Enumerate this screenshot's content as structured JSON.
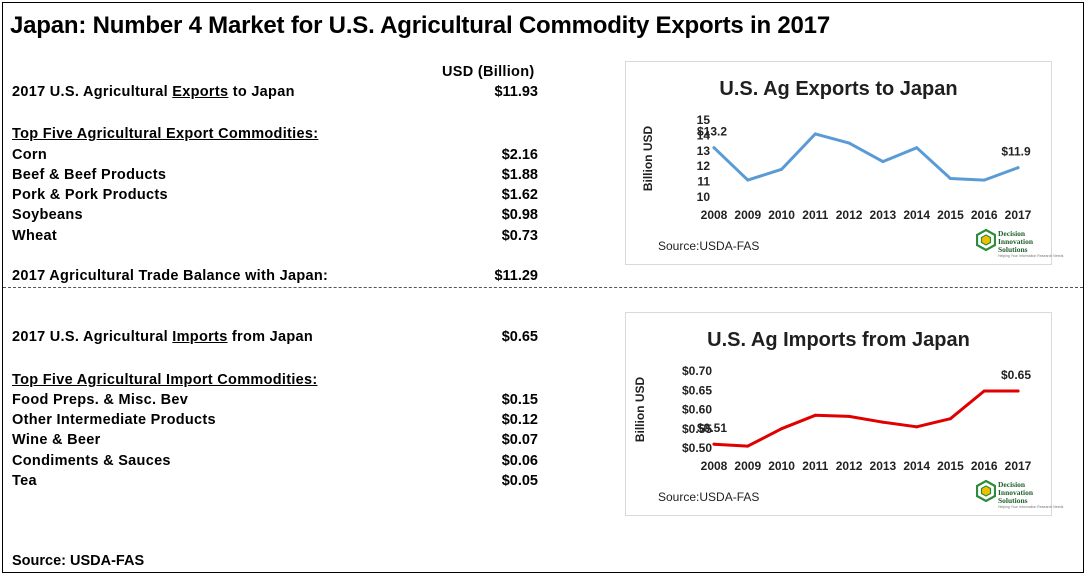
{
  "title": "Japan: Number 4 Market for U.S. Agricultural Commodity Exports in 2017",
  "unit_header": "USD (Billion)",
  "exports": {
    "label_pre": "2017 U.S. Agricultural ",
    "label_key": "Exports",
    "label_post": " to Japan",
    "value": "$11.93",
    "top_heading": "Top Five Agricultural Export Commodities:",
    "items": [
      {
        "name": "Corn",
        "value": "$2.16"
      },
      {
        "name": "Beef & Beef Products",
        "value": "$1.88"
      },
      {
        "name": "Pork & Pork Products",
        "value": "$1.62"
      },
      {
        "name": "Soybeans",
        "value": "$0.98"
      },
      {
        "name": "Wheat",
        "value": "$0.73"
      }
    ],
    "balance_label": "2017 Agricultural Trade Balance with Japan:",
    "balance_value": "$11.29"
  },
  "imports": {
    "label_pre": "2017 U.S. Agricultural ",
    "label_key": "Imports",
    "label_post": " from Japan",
    "value": "$0.65",
    "top_heading": "Top Five Agricultural Import Commodities:",
    "items": [
      {
        "name": "Food Preps. & Misc. Bev",
        "value": "$0.15"
      },
      {
        "name": "Other Intermediate Products",
        "value": "$0.12"
      },
      {
        "name": "Wine & Beer",
        "value": "$0.07"
      },
      {
        "name": "Condiments & Sauces",
        "value": "$0.06"
      },
      {
        "name": "Tea",
        "value": "$0.05"
      }
    ]
  },
  "source": "Source: USDA-FAS",
  "logo": {
    "line1": "Decision",
    "line2": "Innovation",
    "line3": "Solutions",
    "tagline": "Helping Your Information Research Needs"
  },
  "chart_data": [
    {
      "type": "line",
      "title": "U.S. Ag Exports to Japan",
      "ylabel": "Billion USD",
      "xlabel": "",
      "x": [
        "2008",
        "2009",
        "2010",
        "2011",
        "2012",
        "2013",
        "2014",
        "2015",
        "2016",
        "2017"
      ],
      "series": [
        {
          "values": [
            13.2,
            11.1,
            11.8,
            14.1,
            13.5,
            12.3,
            13.2,
            11.2,
            11.1,
            11.9
          ]
        }
      ],
      "ylim": [
        10,
        15
      ],
      "yticks": [
        10,
        11,
        12,
        13,
        14,
        15
      ],
      "ytick_labels": [
        "10",
        "11",
        "12",
        "13",
        "14",
        "15"
      ],
      "annotations": [
        {
          "x": "2008",
          "text": "$13.2"
        },
        {
          "x": "2017",
          "text": "$11.9"
        }
      ],
      "grid": false,
      "line_color": "#5b9bd5",
      "source": "Source:USDA-FAS"
    },
    {
      "type": "line",
      "title": "U.S. Ag Imports from Japan",
      "ylabel": "Billion USD",
      "xlabel": "",
      "x": [
        "2008",
        "2009",
        "2010",
        "2011",
        "2012",
        "2013",
        "2014",
        "2015",
        "2016",
        "2017"
      ],
      "series": [
        {
          "values": [
            0.51,
            0.505,
            0.55,
            0.585,
            0.582,
            0.567,
            0.555,
            0.576,
            0.648,
            0.648
          ]
        }
      ],
      "ylim": [
        0.5,
        0.7
      ],
      "yticks": [
        0.5,
        0.55,
        0.6,
        0.65,
        0.7
      ],
      "ytick_labels": [
        "$0.50",
        "$0.55",
        "$0.60",
        "$0.65",
        "$0.70"
      ],
      "annotations": [
        {
          "x": "2008",
          "text": "$0.51"
        },
        {
          "x": "2017",
          "text": "$0.65"
        }
      ],
      "grid": false,
      "line_color": "#e00000",
      "source": "Source:USDA-FAS"
    }
  ]
}
